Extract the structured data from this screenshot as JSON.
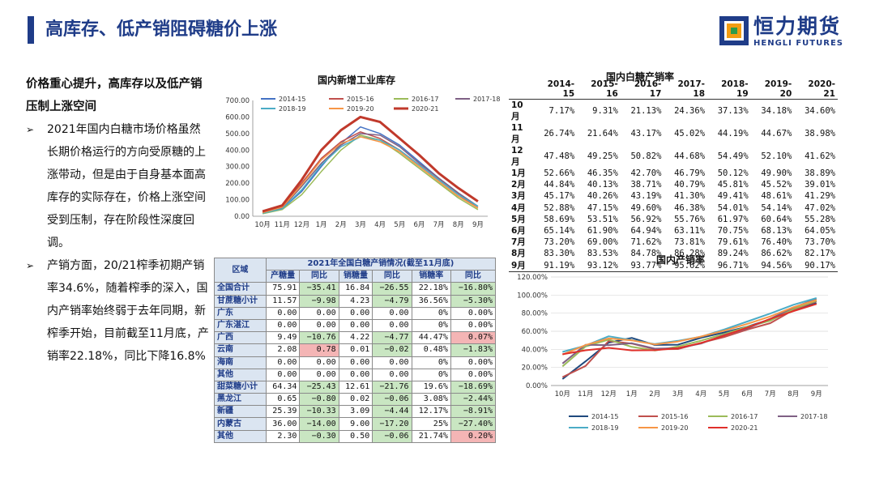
{
  "header": {
    "title": "高库存、低产销阻碍糖价上涨",
    "logo_cn": "恒力期货",
    "logo_en": "HENGLI FUTURES"
  },
  "left_text": {
    "heading": "价格重心提升，高库存以及低产销压制上涨空间",
    "bullets": [
      "2021年国内白糖市场价格虽然长期价格运行的方向受原糖的上涨带动，但是由于自身基本面高库存的实际存在，价格上涨空间受到压制，存在阶段性深度回调。",
      "产销方面，20/21榨季初期产销率34.6%，随着榨季的深入，国内产销率始终弱于去年同期，新榨季开始，目前截至11月底，产销率22.18%，同比下降16.8%"
    ],
    "bullet_mark": "➢"
  },
  "chart_data": [
    {
      "type": "line",
      "title": "国内新增工业库存",
      "categories": [
        "10月",
        "11月",
        "12月",
        "1月",
        "2月",
        "3月",
        "4月",
        "5月",
        "6月",
        "7月",
        "8月",
        "9月"
      ],
      "ylim": [
        0,
        700
      ],
      "yticks": [
        "0.00",
        "100.00",
        "200.00",
        "300.00",
        "400.00",
        "500.00",
        "600.00",
        "700.00"
      ],
      "series": [
        {
          "name": "2014-15",
          "color": "#4472c4",
          "values": [
            20,
            45,
            150,
            300,
            440,
            540,
            500,
            430,
            330,
            230,
            140,
            60
          ]
        },
        {
          "name": "2015-16",
          "color": "#c0504d",
          "values": [
            25,
            60,
            200,
            350,
            450,
            510,
            470,
            400,
            310,
            220,
            130,
            50
          ]
        },
        {
          "name": "2016-17",
          "color": "#9bbb59",
          "values": [
            15,
            40,
            130,
            270,
            400,
            490,
            460,
            380,
            290,
            200,
            110,
            40
          ]
        },
        {
          "name": "2017-18",
          "color": "#7f6084",
          "values": [
            20,
            50,
            180,
            320,
            430,
            500,
            490,
            420,
            320,
            230,
            140,
            60
          ]
        },
        {
          "name": "2018-19",
          "color": "#4bacc6",
          "values": [
            18,
            45,
            160,
            310,
            420,
            480,
            460,
            400,
            310,
            220,
            130,
            60
          ]
        },
        {
          "name": "2019-20",
          "color": "#f79646",
          "values": [
            22,
            55,
            190,
            340,
            440,
            480,
            450,
            390,
            300,
            210,
            120,
            50
          ]
        },
        {
          "name": "2020-21",
          "color": "#c0392b",
          "values": [
            30,
            65,
            220,
            400,
            520,
            600,
            570,
            470,
            370,
            260,
            170,
            90
          ],
          "bold": true
        }
      ]
    },
    {
      "type": "line",
      "title": "国内产销率",
      "categories": [
        "10月",
        "11月",
        "12月",
        "1月",
        "2月",
        "3月",
        "4月",
        "5月",
        "6月",
        "7月",
        "8月",
        "9月"
      ],
      "ylim": [
        0,
        120
      ],
      "yticks": [
        "0.00%",
        "20.00%",
        "40.00%",
        "60.00%",
        "80.00%",
        "100.00%",
        "120.00%"
      ],
      "series": [
        {
          "name": "2014-15",
          "color": "#1f497d",
          "values": [
            7.17,
            26.74,
            47.48,
            52.66,
            44.84,
            45.17,
            52.88,
            58.69,
            65.14,
            73.2,
            83.3,
            91.19
          ]
        },
        {
          "name": "2015-16",
          "color": "#c0504d",
          "values": [
            9.31,
            21.64,
            49.25,
            46.35,
            40.13,
            40.26,
            47.15,
            53.51,
            61.9,
            69.0,
            83.53,
            93.12
          ]
        },
        {
          "name": "2016-17",
          "color": "#9bbb59",
          "values": [
            21.13,
            43.17,
            50.82,
            42.7,
            38.71,
            43.19,
            49.6,
            56.92,
            64.94,
            71.62,
            84.78,
            93.77
          ]
        },
        {
          "name": "2017-18",
          "color": "#7f6084",
          "values": [
            24.36,
            45.02,
            44.68,
            46.79,
            40.79,
            41.3,
            46.38,
            55.76,
            63.11,
            73.81,
            86.28,
            95.62
          ]
        },
        {
          "name": "2018-19",
          "color": "#4bacc6",
          "values": [
            37.13,
            44.19,
            54.49,
            50.12,
            45.81,
            49.41,
            54.01,
            61.97,
            70.75,
            79.61,
            89.24,
            96.71
          ]
        },
        {
          "name": "2019-20",
          "color": "#f79646",
          "values": [
            34.18,
            44.67,
            52.1,
            49.9,
            45.52,
            48.61,
            54.14,
            60.64,
            68.13,
            76.4,
            86.62,
            94.56
          ]
        },
        {
          "name": "2020-21",
          "color": "#e0302a",
          "values": [
            34.6,
            38.98,
            41.62,
            38.89,
            39.01,
            41.29,
            47.02,
            55.28,
            64.05,
            73.7,
            82.17,
            90.17
          ]
        }
      ]
    }
  ],
  "rate_table": {
    "title": "国内白糖产销率",
    "columns": [
      "2014-15",
      "2015-16",
      "2016-17",
      "2017-18",
      "2018-19",
      "2019-20",
      "2020-21"
    ],
    "rows": [
      {
        "month": "10月",
        "values": [
          "7.17%",
          "9.31%",
          "21.13%",
          "24.36%",
          "37.13%",
          "34.18%",
          "34.60%"
        ]
      },
      {
        "month": "11月",
        "values": [
          "26.74%",
          "21.64%",
          "43.17%",
          "45.02%",
          "44.19%",
          "44.67%",
          "38.98%"
        ]
      },
      {
        "month": "12月",
        "values": [
          "47.48%",
          "49.25%",
          "50.82%",
          "44.68%",
          "54.49%",
          "52.10%",
          "41.62%"
        ]
      },
      {
        "month": "1月",
        "values": [
          "52.66%",
          "46.35%",
          "42.70%",
          "46.79%",
          "50.12%",
          "49.90%",
          "38.89%"
        ]
      },
      {
        "month": "2月",
        "values": [
          "44.84%",
          "40.13%",
          "38.71%",
          "40.79%",
          "45.81%",
          "45.52%",
          "39.01%"
        ]
      },
      {
        "month": "3月",
        "values": [
          "45.17%",
          "40.26%",
          "43.19%",
          "41.30%",
          "49.41%",
          "48.61%",
          "41.29%"
        ]
      },
      {
        "month": "4月",
        "values": [
          "52.88%",
          "47.15%",
          "49.60%",
          "46.38%",
          "54.01%",
          "54.14%",
          "47.02%"
        ]
      },
      {
        "month": "5月",
        "values": [
          "58.69%",
          "53.51%",
          "56.92%",
          "55.76%",
          "61.97%",
          "60.64%",
          "55.28%"
        ]
      },
      {
        "month": "6月",
        "values": [
          "65.14%",
          "61.90%",
          "64.94%",
          "63.11%",
          "70.75%",
          "68.13%",
          "64.05%"
        ]
      },
      {
        "month": "7月",
        "values": [
          "73.20%",
          "69.00%",
          "71.62%",
          "73.81%",
          "79.61%",
          "76.40%",
          "73.70%"
        ]
      },
      {
        "month": "8月",
        "values": [
          "83.30%",
          "83.53%",
          "84.78%",
          "86.28%",
          "89.24%",
          "86.62%",
          "82.17%"
        ]
      },
      {
        "month": "9月",
        "values": [
          "91.19%",
          "93.12%",
          "93.77%",
          "95.62%",
          "96.71%",
          "94.56%",
          "90.17%"
        ]
      }
    ]
  },
  "prod_table": {
    "caption": "2021年全国白糖产销情况(截至11月底)",
    "region_header": "区域",
    "columns": [
      "产糖量",
      "同比",
      "销糖量",
      "同比",
      "销糖率",
      "同比"
    ],
    "colors": {
      "green": "#c9e6c2",
      "red": "#f4b5b5"
    },
    "rows": [
      {
        "region": "全国合计",
        "values": [
          "75.91",
          "−35.41",
          "16.84",
          "−26.55",
          "22.18%",
          "−16.80%"
        ],
        "hl": [
          "",
          "g",
          "",
          "g",
          "",
          "g"
        ]
      },
      {
        "region": "甘蔗糖小计",
        "values": [
          "11.57",
          "−9.98",
          "4.23",
          "−4.79",
          "36.56%",
          "−5.30%"
        ],
        "hl": [
          "",
          "g",
          "",
          "g",
          "",
          "g"
        ]
      },
      {
        "region": "广东",
        "values": [
          "0.00",
          "0.00",
          "0.00",
          "0.00",
          "0%",
          "0.00%"
        ],
        "hl": [
          "",
          "",
          "",
          "",
          "",
          ""
        ]
      },
      {
        "region": "广东湛江",
        "values": [
          "0.00",
          "0.00",
          "0.00",
          "0.00",
          "0%",
          "0.00%"
        ],
        "hl": [
          "",
          "",
          "",
          "",
          "",
          ""
        ]
      },
      {
        "region": "广西",
        "values": [
          "9.49",
          "−10.76",
          "4.22",
          "−4.77",
          "44.47%",
          "0.07%"
        ],
        "hl": [
          "",
          "g",
          "",
          "g",
          "",
          "r"
        ]
      },
      {
        "region": "云南",
        "values": [
          "2.08",
          "0.78",
          "0.01",
          "−0.02",
          "0.48%",
          "−1.83%"
        ],
        "hl": [
          "",
          "r",
          "",
          "g",
          "",
          "g"
        ]
      },
      {
        "region": "海南",
        "values": [
          "0.00",
          "0.00",
          "0.00",
          "0.00",
          "0%",
          "0.00%"
        ],
        "hl": [
          "",
          "",
          "",
          "",
          "",
          ""
        ]
      },
      {
        "region": "其他",
        "values": [
          "0.00",
          "0.00",
          "0.00",
          "0.00",
          "0%",
          "0.00%"
        ],
        "hl": [
          "",
          "",
          "",
          "",
          "",
          ""
        ]
      },
      {
        "region": "甜菜糖小计",
        "values": [
          "64.34",
          "−25.43",
          "12.61",
          "−21.76",
          "19.6%",
          "−18.69%"
        ],
        "hl": [
          "",
          "g",
          "",
          "g",
          "",
          "g"
        ]
      },
      {
        "region": "黑龙江",
        "values": [
          "0.65",
          "−0.80",
          "0.02",
          "−0.06",
          "3.08%",
          "−2.44%"
        ],
        "hl": [
          "",
          "g",
          "",
          "g",
          "",
          "g"
        ]
      },
      {
        "region": "新疆",
        "values": [
          "25.39",
          "−10.33",
          "3.09",
          "−4.44",
          "12.17%",
          "−8.91%"
        ],
        "hl": [
          "",
          "g",
          "",
          "g",
          "",
          "g"
        ]
      },
      {
        "region": "内蒙古",
        "values": [
          "36.00",
          "−14.00",
          "9.00",
          "−17.20",
          "25%",
          "−27.40%"
        ],
        "hl": [
          "",
          "g",
          "",
          "g",
          "",
          "g"
        ]
      },
      {
        "region": "其他",
        "values": [
          "2.30",
          "−0.30",
          "0.50",
          "−0.06",
          "21.74%",
          "0.20%"
        ],
        "hl": [
          "",
          "g",
          "",
          "g",
          "",
          "r"
        ]
      }
    ]
  }
}
